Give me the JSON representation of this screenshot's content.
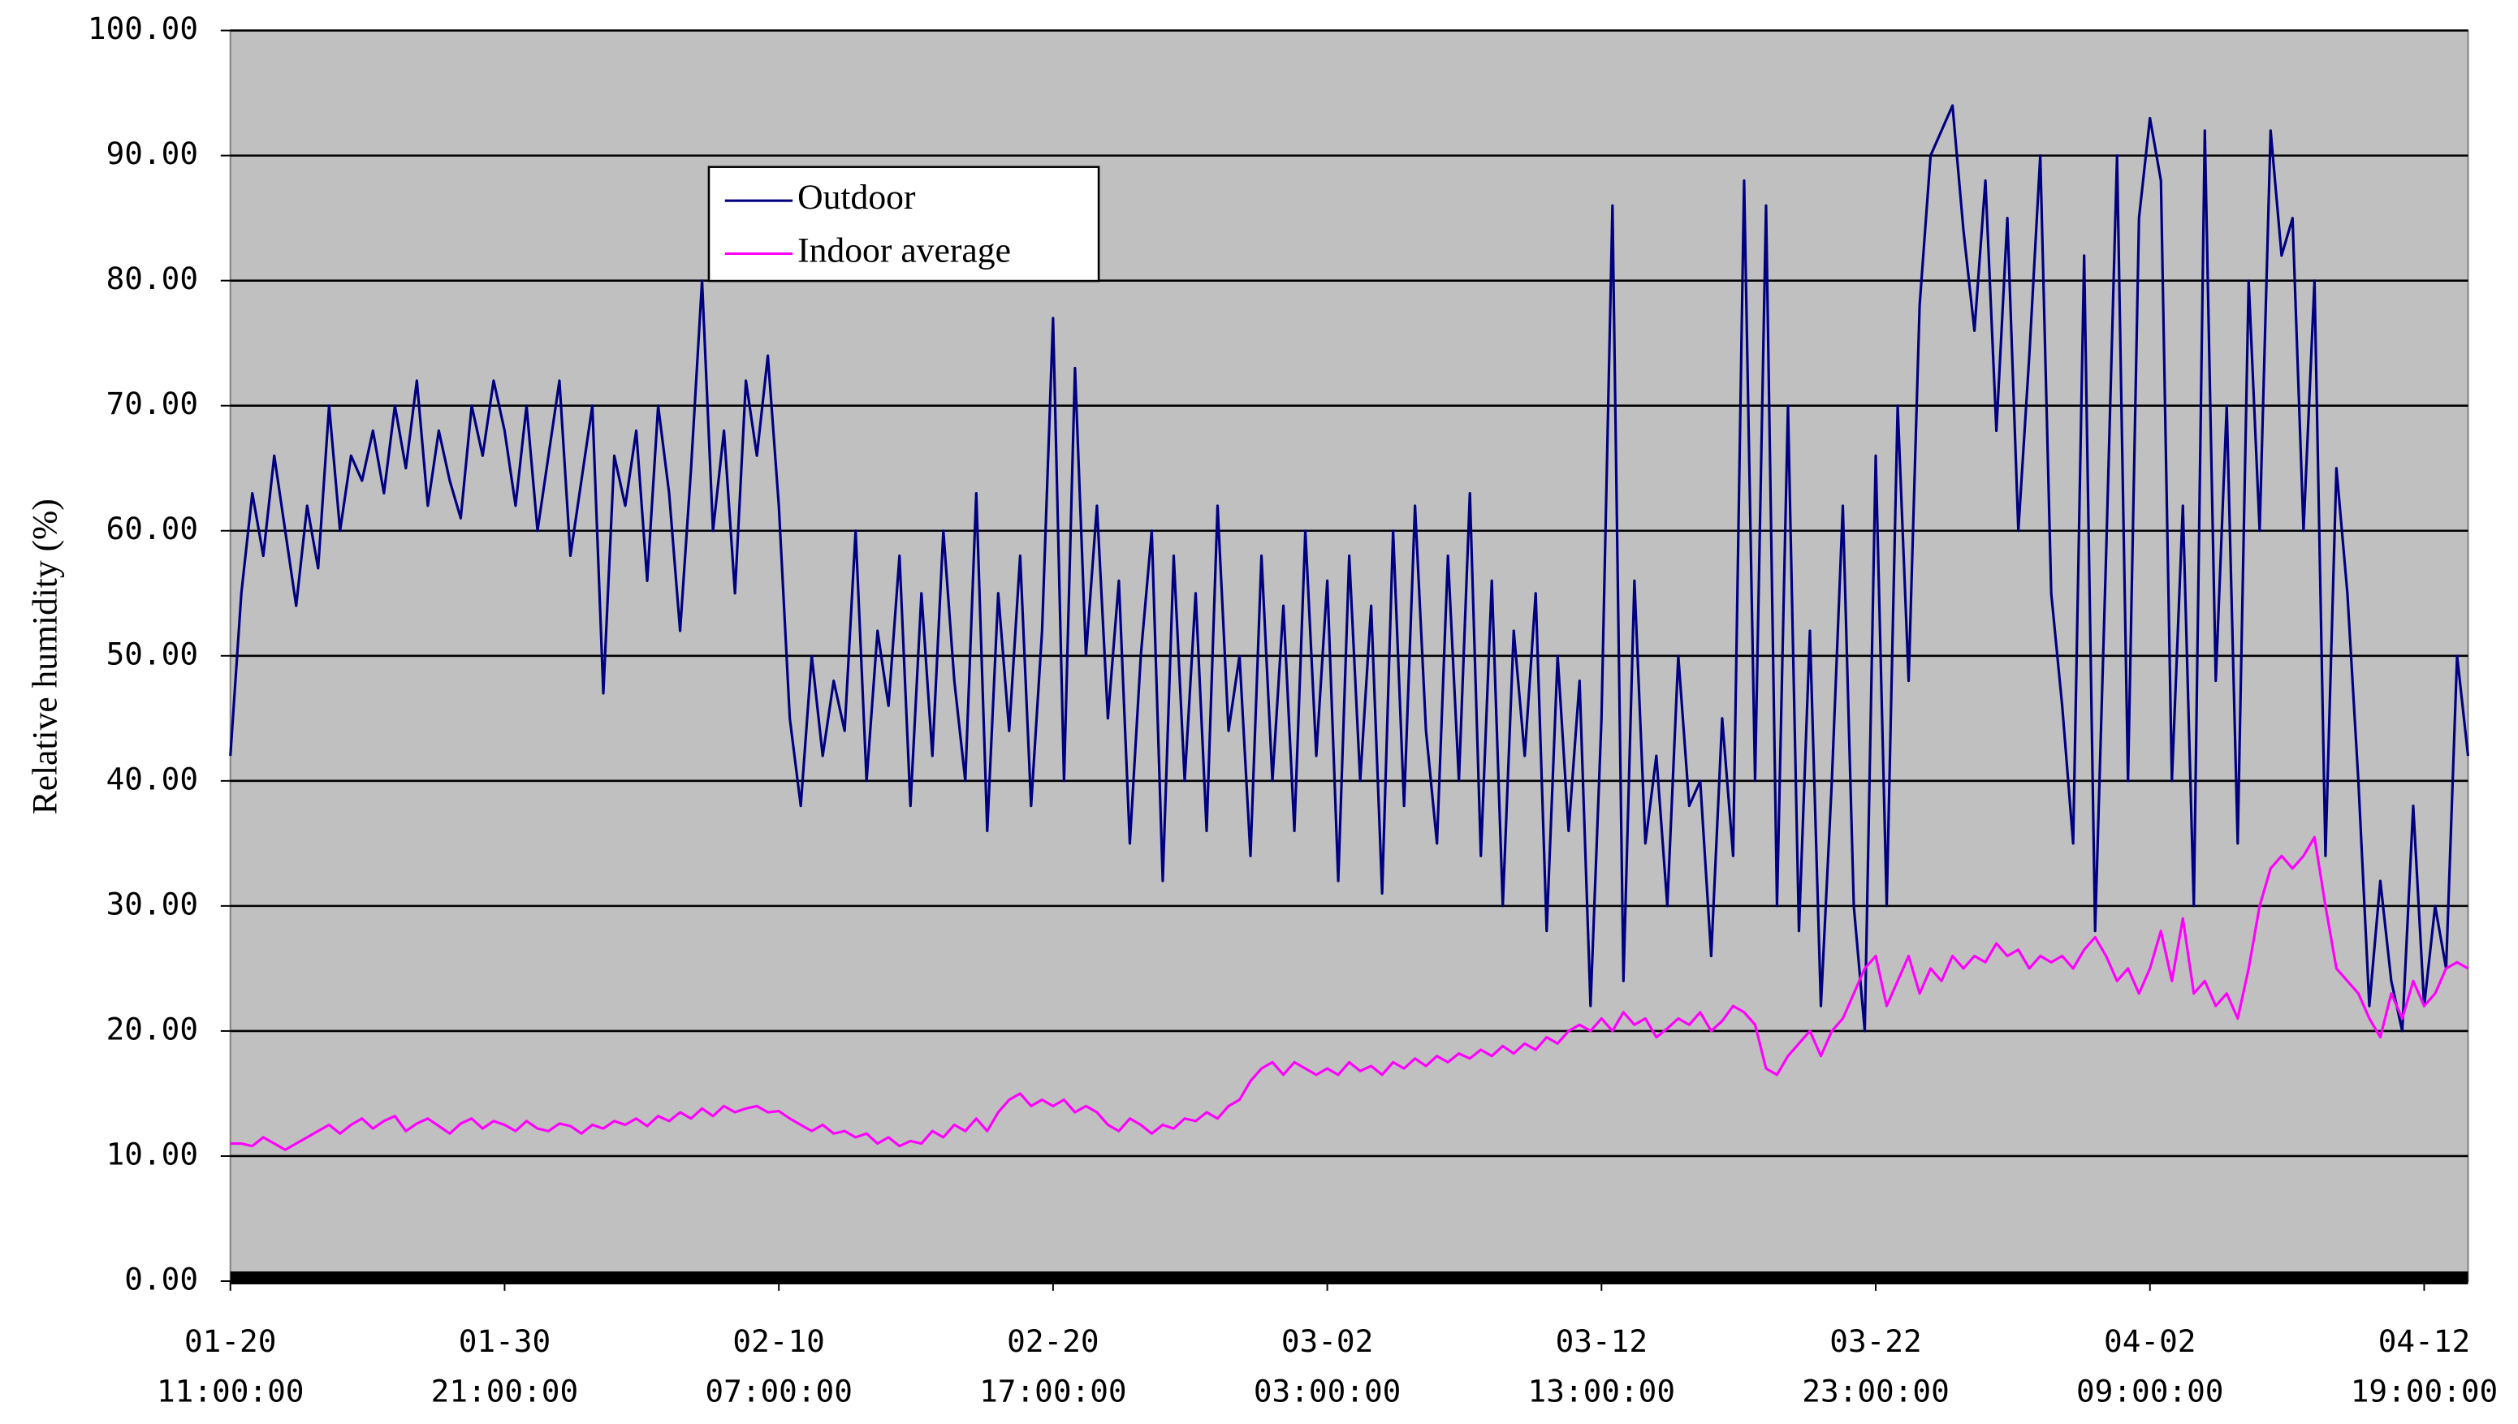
{
  "chart_data": {
    "type": "line",
    "y_label": "Relative humidity (%)",
    "categories": [
      "01-20\n11:00:00",
      null,
      null,
      null,
      null,
      null,
      null,
      null,
      null,
      null,
      null,
      null,
      null,
      null,
      null,
      null,
      null,
      null,
      null,
      null,
      null,
      null,
      null,
      null,
      null,
      "01-30\n21:00:00",
      null,
      null,
      null,
      null,
      null,
      null,
      null,
      null,
      null,
      null,
      null,
      null,
      null,
      null,
      null,
      null,
      null,
      null,
      null,
      null,
      null,
      null,
      null,
      null,
      "02-10\n07:00:00",
      null,
      null,
      null,
      null,
      null,
      null,
      null,
      null,
      null,
      null,
      null,
      null,
      null,
      null,
      null,
      null,
      null,
      null,
      null,
      null,
      null,
      null,
      null,
      null,
      "02-20\n17:00:00",
      null,
      null,
      null,
      null,
      null,
      null,
      null,
      null,
      null,
      null,
      null,
      null,
      null,
      null,
      null,
      null,
      null,
      null,
      null,
      null,
      null,
      null,
      null,
      null,
      "03-02\n03:00:00",
      null,
      null,
      null,
      null,
      null,
      null,
      null,
      null,
      null,
      null,
      null,
      null,
      null,
      null,
      null,
      null,
      null,
      null,
      null,
      null,
      null,
      null,
      null,
      null,
      "03-12\n13:00:00",
      null,
      null,
      null,
      null,
      null,
      null,
      null,
      null,
      null,
      null,
      null,
      null,
      null,
      null,
      null,
      null,
      null,
      null,
      null,
      null,
      null,
      null,
      null,
      null,
      "03-22\n23:00:00",
      null,
      null,
      null,
      null,
      null,
      null,
      null,
      null,
      null,
      null,
      null,
      null,
      null,
      null,
      null,
      null,
      null,
      null,
      null,
      null,
      null,
      null,
      null,
      null,
      "04-02\n09:00:00",
      null,
      null,
      null,
      null,
      null,
      null,
      null,
      null,
      null,
      null,
      null,
      null,
      null,
      null,
      null,
      null,
      null,
      null,
      null,
      null,
      null,
      null,
      null,
      null,
      "04-12\n19:00:00",
      null,
      null,
      null,
      null
    ],
    "series": [
      {
        "name": "Outdoor",
        "color": "#000080",
        "values": [
          42,
          55,
          63,
          58,
          66,
          60,
          54,
          62,
          57,
          70,
          60,
          66,
          64,
          68,
          63,
          70,
          65,
          72,
          62,
          68,
          64,
          61,
          70,
          66,
          72,
          68,
          62,
          70,
          60,
          66,
          72,
          58,
          64,
          70,
          47,
          66,
          62,
          68,
          56,
          70,
          63,
          52,
          65,
          80,
          60,
          68,
          55,
          72,
          66,
          74,
          62,
          45,
          38,
          50,
          42,
          48,
          44,
          60,
          40,
          52,
          46,
          58,
          38,
          55,
          42,
          60,
          48,
          40,
          63,
          36,
          55,
          44,
          58,
          38,
          52,
          77,
          40,
          73,
          50,
          62,
          45,
          56,
          35,
          50,
          60,
          32,
          58,
          40,
          55,
          36,
          62,
          44,
          50,
          34,
          58,
          40,
          54,
          36,
          60,
          42,
          56,
          32,
          58,
          40,
          54,
          31,
          60,
          38,
          62,
          44,
          35,
          58,
          40,
          63,
          34,
          56,
          30,
          52,
          42,
          55,
          28,
          50,
          36,
          48,
          22,
          45,
          86,
          24,
          56,
          35,
          42,
          30,
          50,
          38,
          40,
          26,
          45,
          34,
          88,
          40,
          86,
          30,
          70,
          28,
          52,
          22,
          40,
          62,
          30,
          20,
          66,
          30,
          70,
          48,
          78,
          90,
          92,
          94,
          84,
          76,
          88,
          68,
          85,
          60,
          74,
          90,
          55,
          46,
          35,
          82,
          28,
          58,
          90,
          40,
          85,
          93,
          88,
          40,
          62,
          30,
          92,
          48,
          70,
          35,
          80,
          60,
          92,
          82,
          85,
          60,
          80,
          34,
          65,
          55,
          40,
          22,
          32,
          24,
          20,
          38,
          22,
          30,
          25,
          50,
          42
        ]
      },
      {
        "name": "Indoor average",
        "color": "#ff00ff",
        "values": [
          11,
          11,
          10.8,
          11.5,
          11,
          10.5,
          11,
          11.5,
          12,
          12.5,
          11.8,
          12.5,
          13,
          12.2,
          12.8,
          13.2,
          12,
          12.6,
          13,
          12.4,
          11.8,
          12.6,
          13,
          12.2,
          12.8,
          12.5,
          12,
          12.8,
          12.2,
          12,
          12.6,
          12.4,
          11.8,
          12.5,
          12.2,
          12.8,
          12.5,
          13,
          12.4,
          13.2,
          12.8,
          13.5,
          13,
          13.8,
          13.2,
          14,
          13.5,
          13.8,
          14,
          13.5,
          13.6,
          13,
          12.5,
          12,
          12.5,
          11.8,
          12,
          11.5,
          11.8,
          11,
          11.5,
          10.8,
          11.2,
          11,
          12,
          11.5,
          12.5,
          12,
          13,
          12,
          13.5,
          14.5,
          15,
          14,
          14.5,
          14,
          14.5,
          13.5,
          14,
          13.5,
          12.5,
          12,
          13,
          12.5,
          11.8,
          12.5,
          12.2,
          13,
          12.8,
          13.5,
          13,
          14,
          14.5,
          16,
          17,
          17.5,
          16.5,
          17.5,
          17,
          16.5,
          17,
          16.5,
          17.5,
          16.8,
          17.2,
          16.5,
          17.5,
          17,
          17.8,
          17.2,
          18,
          17.5,
          18.2,
          17.8,
          18.5,
          18,
          18.8,
          18.2,
          19,
          18.5,
          19.5,
          19,
          20,
          20.5,
          20,
          21,
          20,
          21.5,
          20.5,
          21,
          19.5,
          20.2,
          21,
          20.5,
          21.5,
          20,
          20.8,
          22,
          21.5,
          20.5,
          17,
          16.5,
          18,
          19,
          20,
          18,
          20,
          21,
          23,
          25,
          26,
          22,
          24,
          26,
          23,
          25,
          24,
          26,
          25,
          26,
          25.5,
          27,
          26,
          26.5,
          25,
          26,
          25.5,
          26,
          25,
          26.5,
          27.5,
          26,
          24,
          25,
          23,
          25,
          28,
          24,
          29,
          23,
          24,
          22,
          23,
          21,
          25,
          30,
          33,
          34,
          33,
          34,
          35.5,
          30,
          25,
          24,
          23,
          21,
          19.5,
          23,
          21,
          24,
          22,
          23,
          25,
          25.5,
          25
        ]
      }
    ],
    "ylim": [
      0,
      100
    ],
    "yticks": [
      {
        "value": 0,
        "label": "0.00"
      },
      {
        "value": 10,
        "label": "10.00"
      },
      {
        "value": 20,
        "label": "20.00"
      },
      {
        "value": 30,
        "label": "30.00"
      },
      {
        "value": 40,
        "label": "40.00"
      },
      {
        "value": 50,
        "label": "50.00"
      },
      {
        "value": 60,
        "label": "60.00"
      },
      {
        "value": 70,
        "label": "70.00"
      },
      {
        "value": 80,
        "label": "80.00"
      },
      {
        "value": 90,
        "label": "90.00"
      },
      {
        "value": 100,
        "label": "100.00"
      }
    ],
    "grid": true,
    "legend": "top-left"
  }
}
